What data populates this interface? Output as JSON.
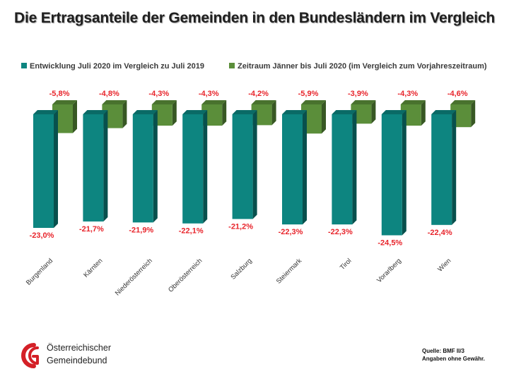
{
  "title": "Die Ertragsanteile der Gemeinden in den Bundesländern im Vergleich",
  "colors": {
    "series1": "#0d8580",
    "series2": "#5b8e3a",
    "label": "#e8242b"
  },
  "chart_data": {
    "type": "bar",
    "categories": [
      "Burgenland",
      "Kärnten",
      "Niederösterreich",
      "Oberösterreich",
      "Salzburg",
      "Steiermark",
      "Tirol",
      "Vorarlberg",
      "Wien"
    ],
    "series": [
      {
        "name": "Entwicklung Juli 2020 im Vergleich zu Juli 2019",
        "values": [
          -23.0,
          -21.7,
          -21.9,
          -22.1,
          -21.2,
          -22.3,
          -22.3,
          -24.5,
          -22.4
        ],
        "labels": [
          "-23,0%",
          "-21,7%",
          "-21,9%",
          "-22,1%",
          "-21,2%",
          "-22,3%",
          "-22,3%",
          "-24,5%",
          "-22,4%"
        ]
      },
      {
        "name": "Zeitraum Jänner bis Juli 2020 (im Vergleich zum Vorjahreszeitraum)",
        "values": [
          -5.8,
          -4.8,
          -4.3,
          -4.3,
          -4.2,
          -5.9,
          -3.9,
          -4.3,
          -4.6
        ],
        "labels": [
          "-5,8%",
          "-4,8%",
          "-4,3%",
          "-4,3%",
          "-4,2%",
          "-5,9%",
          "-3,9%",
          "-4,3%",
          "-4,6%"
        ]
      }
    ]
  },
  "logo": {
    "line1": "Österreichischer",
    "line2": "Gemeindebund"
  },
  "source": {
    "line1": "Quelle: BMF II/3",
    "line2": "Angaben ohne Gewähr."
  }
}
